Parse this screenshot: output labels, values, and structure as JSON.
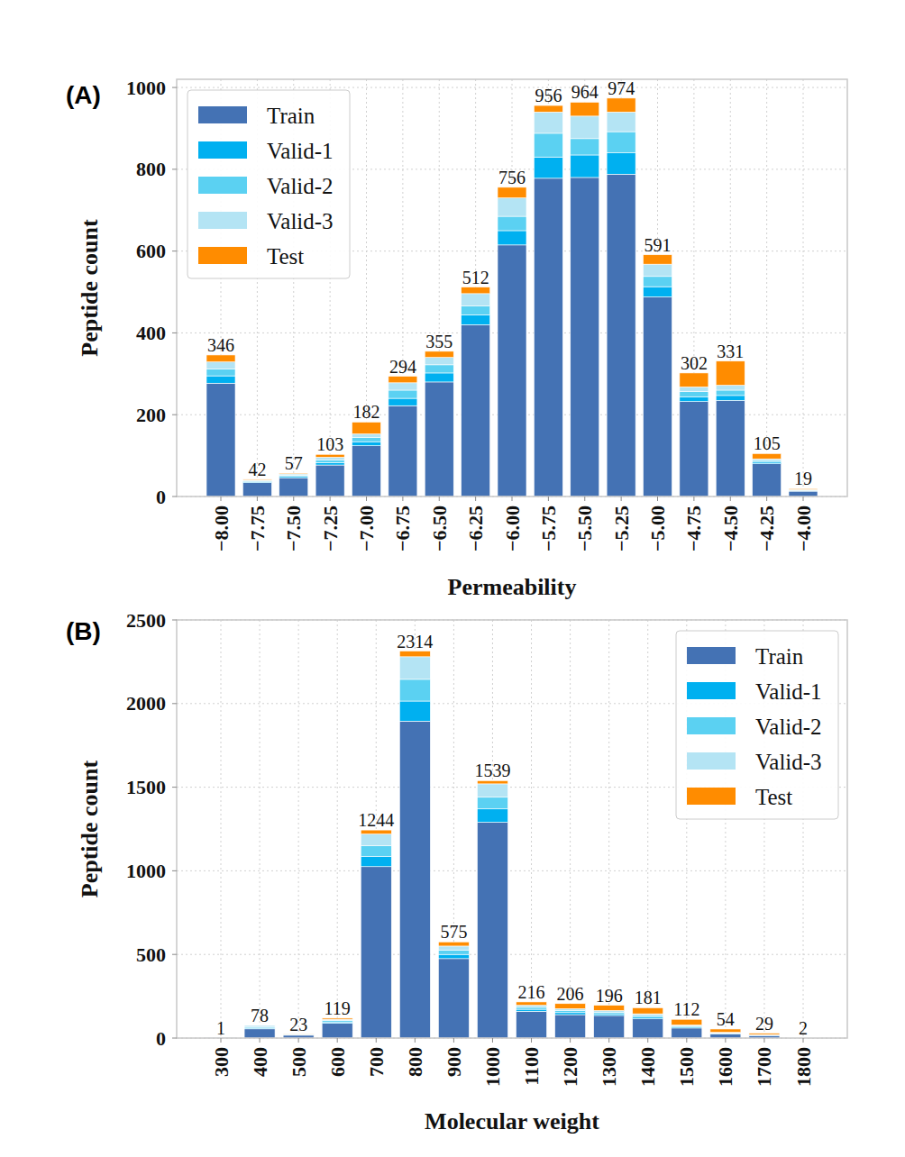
{
  "chart_data": [
    {
      "type": "bar",
      "title": "(A)",
      "x_label": "Permeability",
      "y_label": "Peptide count",
      "stacked": true,
      "grid": true,
      "legend": "upper-left",
      "categories": [
        "−8.00",
        "−7.75",
        "−7.50",
        "−7.25",
        "−7.00",
        "−6.75",
        "−6.50",
        "−6.25",
        "−6.00",
        "−5.75",
        "−5.50",
        "−5.25",
        "−5.00",
        "−4.75",
        "−4.50",
        "−4.25",
        "−4.00"
      ],
      "series": [
        {
          "name": "Train",
          "color": "#4472b4",
          "values": [
            277,
            34,
            46,
            77,
            124,
            222,
            280,
            420,
            615,
            778,
            780,
            788,
            488,
            232,
            235,
            80,
            13
          ]
        },
        {
          "name": "Valid-1",
          "color": "#00b0f0",
          "values": [
            18,
            2,
            3,
            6,
            10,
            18,
            22,
            24,
            35,
            52,
            55,
            52,
            25,
            12,
            12,
            4,
            1
          ]
        },
        {
          "name": "Valid-2",
          "color": "#5bd1f2",
          "values": [
            17,
            2,
            3,
            6,
            10,
            20,
            20,
            22,
            35,
            58,
            40,
            52,
            25,
            13,
            13,
            4,
            1
          ]
        },
        {
          "name": "Valid-3",
          "color": "#b4e4f4",
          "values": [
            17,
            2,
            3,
            7,
            9,
            18,
            18,
            30,
            45,
            52,
            55,
            48,
            30,
            11,
            12,
            4,
            2
          ]
        },
        {
          "name": "Test",
          "color": "#ff8c00",
          "values": [
            17,
            2,
            2,
            7,
            29,
            16,
            15,
            16,
            26,
            16,
            34,
            34,
            23,
            34,
            59,
            13,
            2
          ]
        }
      ],
      "totals": [
        346,
        42,
        57,
        103,
        182,
        294,
        355,
        512,
        756,
        956,
        964,
        974,
        591,
        302,
        331,
        105,
        19
      ],
      "ylim": [
        0,
        1020
      ],
      "yticks": [
        0,
        200,
        400,
        600,
        800,
        1000
      ]
    },
    {
      "type": "bar",
      "title": "(B)",
      "x_label": "Molecular weight",
      "y_label": "Peptide count",
      "stacked": true,
      "grid": true,
      "legend": "upper-right",
      "categories": [
        "300",
        "400",
        "500",
        "600",
        "700",
        "800",
        "900",
        "1000",
        "1100",
        "1200",
        "1300",
        "1400",
        "1500",
        "1600",
        "1700",
        "1800"
      ],
      "series": [
        {
          "name": "Train",
          "color": "#4472b4",
          "values": [
            1,
            55,
            17,
            88,
            1025,
            1895,
            475,
            1290,
            160,
            140,
            135,
            115,
            60,
            25,
            15,
            1
          ]
        },
        {
          "name": "Valid-1",
          "color": "#00b0f0",
          "values": [
            0,
            5,
            2,
            8,
            60,
            120,
            25,
            80,
            12,
            12,
            10,
            10,
            6,
            3,
            2,
            0
          ]
        },
        {
          "name": "Valid-2",
          "color": "#5bd1f2",
          "values": [
            0,
            6,
            2,
            8,
            65,
            130,
            25,
            70,
            12,
            12,
            10,
            10,
            6,
            3,
            2,
            0
          ]
        },
        {
          "name": "Valid-3",
          "color": "#b4e4f4",
          "values": [
            0,
            10,
            1,
            8,
            70,
            135,
            25,
            80,
            12,
            12,
            10,
            10,
            6,
            3,
            2,
            0
          ]
        },
        {
          "name": "Test",
          "color": "#ff8c00",
          "values": [
            0,
            2,
            1,
            7,
            24,
            34,
            25,
            19,
            20,
            30,
            31,
            36,
            34,
            20,
            8,
            1
          ]
        }
      ],
      "totals": [
        1,
        78,
        23,
        119,
        1244,
        2314,
        575,
        1539,
        216,
        206,
        196,
        181,
        112,
        54,
        29,
        2
      ],
      "ylim": [
        0,
        2500
      ],
      "yticks": [
        0,
        500,
        1000,
        1500,
        2000,
        2500
      ]
    }
  ]
}
